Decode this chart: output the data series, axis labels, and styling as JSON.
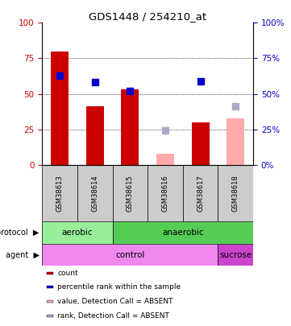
{
  "title": "GDS1448 / 254210_at",
  "samples": [
    "GSM38613",
    "GSM38614",
    "GSM38615",
    "GSM38616",
    "GSM38617",
    "GSM38618"
  ],
  "red_bars": [
    80,
    41,
    53,
    null,
    30,
    null
  ],
  "pink_bars": [
    null,
    null,
    null,
    8,
    null,
    33
  ],
  "blue_dots": [
    63,
    58,
    52,
    null,
    59,
    null
  ],
  "lavender_dots": [
    null,
    null,
    null,
    24,
    null,
    41
  ],
  "ylim": [
    0,
    100
  ],
  "yticks": [
    0,
    25,
    50,
    75,
    100
  ],
  "red_color": "#cc0000",
  "pink_color": "#ffaaaa",
  "blue_color": "#0000cc",
  "lavender_color": "#aaaacc",
  "protocol_aerobic": {
    "label": "aerobic",
    "n_cols": 2,
    "color": "#99ee99"
  },
  "protocol_anaerobic": {
    "label": "anaerobic",
    "n_cols": 4,
    "color": "#55cc55"
  },
  "agent_control": {
    "label": "control",
    "n_cols": 5,
    "color": "#ee88ee"
  },
  "agent_sucrose": {
    "label": "sucrose",
    "n_cols": 1,
    "color": "#cc44cc"
  },
  "legend_items": [
    {
      "label": "count",
      "color": "#cc0000"
    },
    {
      "label": "percentile rank within the sample",
      "color": "#0000cc"
    },
    {
      "label": "value, Detection Call = ABSENT",
      "color": "#ffaaaa"
    },
    {
      "label": "rank, Detection Call = ABSENT",
      "color": "#aaaacc"
    }
  ],
  "xticklabel_area_color": "#cccccc",
  "bar_width": 0.5,
  "dot_size": 40
}
